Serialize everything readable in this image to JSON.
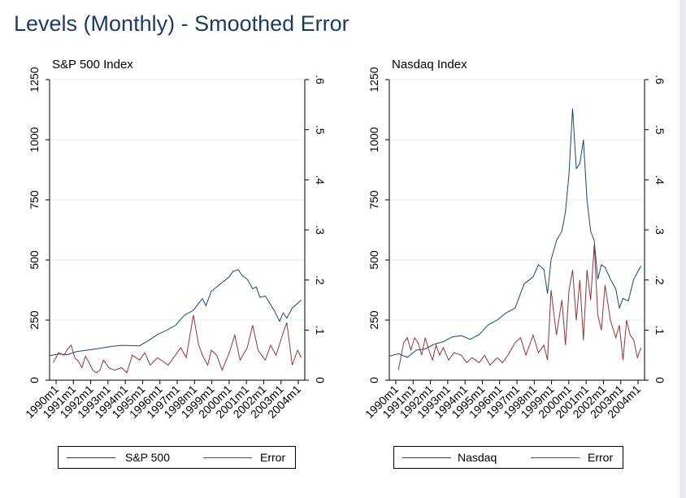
{
  "figure": {
    "title": "Levels (Monthly) - Smoothed Error"
  },
  "colors": {
    "index_line": "#1a476f",
    "error_line": "#90353b",
    "grid": "#eaeff4"
  },
  "chart_data": [
    {
      "type": "line",
      "title": "S&P 500 Index",
      "x_tick_labels": [
        "1990m1",
        "1991m1",
        "1992m1",
        "1993m1",
        "1994m1",
        "1995m1",
        "1996m1",
        "1997m1",
        "1998m1",
        "1999m1",
        "2000m1",
        "2001m1",
        "2002m1",
        "2003m1",
        "2004m1"
      ],
      "y_left": {
        "range": [
          0,
          1250
        ],
        "ticks": [
          0,
          250,
          500,
          750,
          1000,
          1250
        ]
      },
      "y_right": {
        "range": [
          0,
          0.6
        ],
        "ticks": [
          0,
          0.1,
          0.2,
          0.3,
          0.4,
          0.5,
          0.6
        ],
        "tick_labels": [
          "0",
          ".1",
          ".2",
          ".3",
          ".4",
          ".5",
          ".6"
        ]
      },
      "x_range": [
        1990.0,
        2004.2
      ],
      "grid": true,
      "legend": {
        "position": "bottom",
        "entries": [
          "S&P 500",
          "Error"
        ]
      },
      "series": [
        {
          "name": "S&P 500",
          "axis": "left",
          "color": "#1a476f",
          "x": [
            1990.0,
            1990.5,
            1991.0,
            1991.5,
            1992.0,
            1992.5,
            1993.0,
            1993.5,
            1994.0,
            1994.5,
            1995.0,
            1995.5,
            1996.0,
            1996.5,
            1997.0,
            1997.5,
            1998.0,
            1998.5,
            1998.7,
            1999.0,
            1999.5,
            2000.0,
            2000.2,
            2000.5,
            2000.7,
            2001.0,
            2001.3,
            2001.5,
            2001.7,
            2002.0,
            2002.5,
            2002.8,
            2003.0,
            2003.2,
            2003.5,
            2004.0
          ],
          "y": [
            102,
            109,
            106,
            119,
            124,
            129,
            135,
            141,
            145,
            144,
            143,
            165,
            190,
            207,
            228,
            270,
            291,
            340,
            310,
            370,
            400,
            430,
            452,
            460,
            436,
            420,
            380,
            388,
            345,
            350,
            290,
            245,
            280,
            258,
            300,
            333
          ]
        },
        {
          "name": "Error",
          "axis": "right",
          "color": "#90353b",
          "x": [
            1990.2,
            1990.5,
            1990.8,
            1991.0,
            1991.2,
            1991.4,
            1991.6,
            1991.8,
            1992.0,
            1992.2,
            1992.4,
            1992.6,
            1992.8,
            1993.0,
            1993.3,
            1993.6,
            1994.0,
            1994.3,
            1994.6,
            1995.0,
            1995.3,
            1995.6,
            1996.0,
            1996.3,
            1996.6,
            1997.0,
            1997.3,
            1997.6,
            1998.0,
            1998.3,
            1998.5,
            1998.8,
            1999.0,
            1999.3,
            1999.6,
            2000.0,
            2000.3,
            2000.6,
            2001.0,
            2001.3,
            2001.6,
            2002.0,
            2002.3,
            2002.6,
            2003.0,
            2003.2,
            2003.5,
            2003.8,
            2004.0
          ],
          "y": [
            0.035,
            0.055,
            0.05,
            0.062,
            0.07,
            0.045,
            0.038,
            0.025,
            0.048,
            0.035,
            0.02,
            0.015,
            0.02,
            0.04,
            0.025,
            0.02,
            0.025,
            0.015,
            0.05,
            0.04,
            0.055,
            0.03,
            0.045,
            0.038,
            0.03,
            0.05,
            0.065,
            0.045,
            0.13,
            0.07,
            0.05,
            0.03,
            0.06,
            0.05,
            0.02,
            0.055,
            0.09,
            0.04,
            0.065,
            0.11,
            0.06,
            0.04,
            0.07,
            0.05,
            0.095,
            0.115,
            0.03,
            0.06,
            0.045
          ]
        }
      ]
    },
    {
      "type": "line",
      "title": "Nasdaq Index",
      "x_tick_labels": [
        "1990m1",
        "1991m1",
        "1992m1",
        "1993m1",
        "1994m1",
        "1995m1",
        "1996m1",
        "1997m1",
        "1998m1",
        "1999m1",
        "2000m1",
        "2001m1",
        "2002m1",
        "2003m1",
        "2004m1"
      ],
      "y_left": {
        "range": [
          0,
          1250
        ],
        "ticks": [
          0,
          250,
          500,
          750,
          1000,
          1250
        ]
      },
      "y_right": {
        "range": [
          0,
          0.6
        ],
        "ticks": [
          0,
          0.1,
          0.2,
          0.3,
          0.4,
          0.5,
          0.6
        ],
        "tick_labels": [
          "0",
          ".1",
          ".2",
          ".3",
          ".4",
          ".5",
          ".6"
        ]
      },
      "x_range": [
        1990.0,
        2004.2
      ],
      "grid": true,
      "legend": {
        "position": "bottom",
        "entries": [
          "Nasdaq",
          "Error"
        ]
      },
      "series": [
        {
          "name": "Nasdaq",
          "axis": "left",
          "color": "#1a476f",
          "x": [
            1990.0,
            1990.5,
            1991.0,
            1991.5,
            1992.0,
            1992.5,
            1993.0,
            1993.5,
            1994.0,
            1994.5,
            1995.0,
            1995.5,
            1996.0,
            1996.5,
            1997.0,
            1997.5,
            1998.0,
            1998.3,
            1998.6,
            1998.8,
            1999.0,
            1999.3,
            1999.6,
            1999.8,
            2000.0,
            2000.1,
            2000.2,
            2000.4,
            2000.6,
            2000.8,
            2001.0,
            2001.2,
            2001.4,
            2001.6,
            2001.8,
            2002.0,
            2002.3,
            2002.6,
            2002.8,
            2003.0,
            2003.3,
            2003.6,
            2004.0
          ],
          "y": [
            100,
            110,
            95,
            125,
            130,
            150,
            160,
            180,
            185,
            170,
            190,
            230,
            250,
            280,
            300,
            400,
            430,
            480,
            460,
            360,
            500,
            580,
            620,
            700,
            860,
            1000,
            1130,
            880,
            900,
            1000,
            750,
            620,
            580,
            420,
            480,
            470,
            420,
            380,
            300,
            340,
            330,
            420,
            475
          ]
        },
        {
          "name": "Error",
          "axis": "right",
          "color": "#90353b",
          "x": [
            1990.5,
            1990.8,
            1991.0,
            1991.2,
            1991.4,
            1991.6,
            1991.8,
            1992.0,
            1992.2,
            1992.4,
            1992.6,
            1992.8,
            1993.0,
            1993.3,
            1993.6,
            1994.0,
            1994.3,
            1994.6,
            1995.0,
            1995.3,
            1995.6,
            1996.0,
            1996.3,
            1996.6,
            1997.0,
            1997.3,
            1997.6,
            1998.0,
            1998.3,
            1998.6,
            1998.8,
            1999.0,
            1999.3,
            1999.6,
            1999.8,
            2000.0,
            2000.2,
            2000.4,
            2000.6,
            2000.8,
            2001.0,
            2001.2,
            2001.4,
            2001.6,
            2001.8,
            2002.0,
            2002.3,
            2002.6,
            2002.8,
            2003.0,
            2003.2,
            2003.4,
            2003.6,
            2003.8,
            2004.0
          ],
          "y": [
            0.02,
            0.075,
            0.085,
            0.06,
            0.085,
            0.075,
            0.05,
            0.085,
            0.06,
            0.04,
            0.07,
            0.05,
            0.065,
            0.04,
            0.055,
            0.05,
            0.035,
            0.045,
            0.035,
            0.05,
            0.03,
            0.045,
            0.035,
            0.05,
            0.075,
            0.085,
            0.05,
            0.09,
            0.055,
            0.07,
            0.04,
            0.18,
            0.09,
            0.16,
            0.07,
            0.18,
            0.22,
            0.12,
            0.2,
            0.08,
            0.22,
            0.16,
            0.27,
            0.13,
            0.1,
            0.19,
            0.12,
            0.085,
            0.11,
            0.04,
            0.12,
            0.09,
            0.08,
            0.045,
            0.065
          ]
        }
      ]
    }
  ]
}
